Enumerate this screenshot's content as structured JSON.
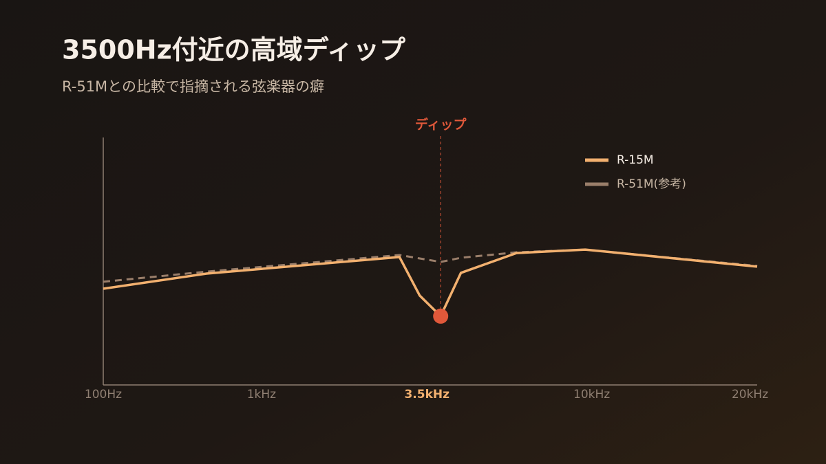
{
  "chart_data": {
    "type": "line",
    "title": "3500Hz付近の高域ディップ",
    "subtitle": "R-51Mとの比較で指摘される弦楽器の癖",
    "xlim": [
      0,
      100
    ],
    "ylim": [
      0,
      100
    ],
    "xticks": [
      {
        "value": 0,
        "label": "100Hz"
      },
      {
        "value": 24.2,
        "label": "1kHz"
      },
      {
        "value": 49.5,
        "label": "3.5kHz"
      },
      {
        "value": 74.7,
        "label": "10kHz"
      },
      {
        "value": 98.9,
        "label": "20kHz"
      }
    ],
    "highlight_xtick": 2,
    "series": [
      {
        "name": "R-15M",
        "color": "#f2b06f",
        "dashed": false,
        "x": [
          0,
          15.8,
          45.3,
          48.4,
          51.6,
          54.7,
          63.2,
          73.7,
          100
        ],
        "values": [
          38.9,
          45,
          51.7,
          36.1,
          27.8,
          45.3,
          53.3,
          54.7,
          47.8
        ]
      },
      {
        "name": "R-51M(参考)",
        "color": "#9a7e6a",
        "dashed": true,
        "x": [
          0,
          15.8,
          45.3,
          51.6,
          54.7,
          63.2,
          73.7,
          100
        ],
        "values": [
          41.7,
          45.8,
          52.5,
          49.7,
          51.4,
          53.6,
          54.7,
          48.1
        ]
      }
    ],
    "annotation": {
      "text": "ディップ",
      "x": 51.6,
      "color": "#e0583a",
      "series": 0,
      "point": 4
    },
    "legend": "top-right"
  }
}
